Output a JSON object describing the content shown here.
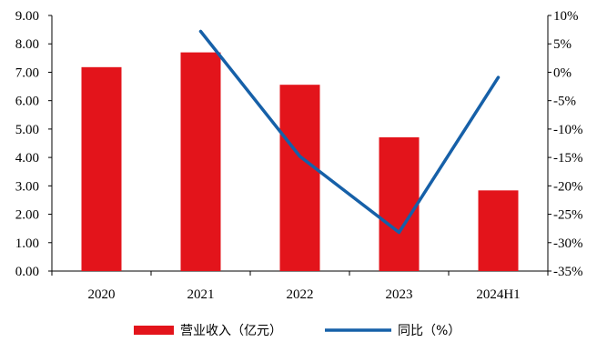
{
  "chart_data": {
    "type": "bar",
    "categories": [
      "2020",
      "2021",
      "2022",
      "2023",
      "2024H1"
    ],
    "series": [
      {
        "name": "营业收入（亿元）",
        "type": "bar",
        "axis": "left",
        "color": "#e3141b",
        "values": [
          7.18,
          7.7,
          6.56,
          4.71,
          2.84
        ]
      },
      {
        "name": "同比（%）",
        "type": "line",
        "axis": "right",
        "color": "#1660a8",
        "values": [
          null,
          7.2,
          -14.8,
          -28.2,
          -0.9
        ]
      }
    ],
    "y_left": {
      "min": 0,
      "max": 9,
      "step": 1,
      "tick_labels": [
        "0.00",
        "1.00",
        "2.00",
        "3.00",
        "4.00",
        "5.00",
        "6.00",
        "7.00",
        "8.00",
        "9.00"
      ]
    },
    "y_right": {
      "min": -35,
      "max": 10,
      "step": 5,
      "tick_labels": [
        "-35%",
        "-30%",
        "-25%",
        "-20%",
        "-15%",
        "-10%",
        "-5%",
        "0%",
        "5%",
        "10%"
      ]
    },
    "title": "",
    "xlabel": "",
    "ylabel": "",
    "grid": false,
    "legend_position": "bottom-center"
  }
}
